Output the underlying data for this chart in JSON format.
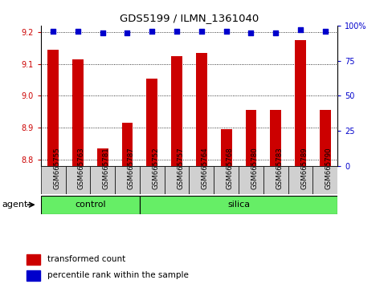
{
  "title": "GDS5199 / ILMN_1361040",
  "samples": [
    "GSM665755",
    "GSM665763",
    "GSM665781",
    "GSM665787",
    "GSM665752",
    "GSM665757",
    "GSM665764",
    "GSM665768",
    "GSM665780",
    "GSM665783",
    "GSM665789",
    "GSM665790"
  ],
  "red_values": [
    9.145,
    9.115,
    8.835,
    8.915,
    9.055,
    9.125,
    9.135,
    8.895,
    8.955,
    8.955,
    9.175,
    8.955
  ],
  "blue_values": [
    96,
    96,
    95,
    95,
    96,
    96,
    96,
    96,
    95,
    95,
    97,
    96
  ],
  "group_labels": [
    "control",
    "silica"
  ],
  "group_ranges": [
    [
      0,
      4
    ],
    [
      4,
      12
    ]
  ],
  "ylim_left": [
    8.78,
    9.22
  ],
  "ylim_right": [
    0,
    100
  ],
  "yticks_left": [
    8.8,
    8.9,
    9.0,
    9.1,
    9.2
  ],
  "yticks_right": [
    0,
    25,
    50,
    75,
    100
  ],
  "ytick_labels_right": [
    "0",
    "25",
    "50",
    "75",
    "100%"
  ],
  "bar_color": "#cc0000",
  "dot_color": "#0000cc",
  "bar_width": 0.45,
  "legend_items": [
    {
      "label": "transformed count",
      "color": "#cc0000"
    },
    {
      "label": "percentile rank within the sample",
      "color": "#0000cc"
    }
  ],
  "agent_label": "agent",
  "grid_color": "#000000",
  "tickbox_color": "#d0d0d0",
  "group_color": "#66ee66",
  "plot_bg": "#ffffff"
}
